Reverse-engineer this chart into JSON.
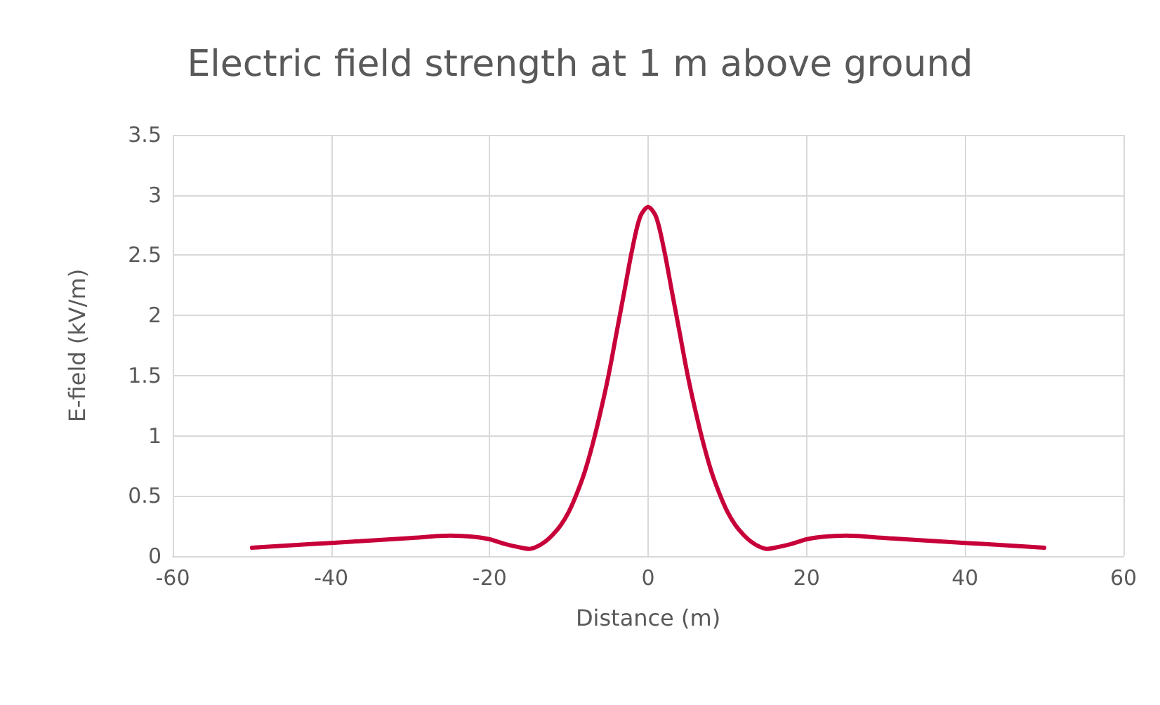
{
  "chart_data": {
    "type": "line",
    "title": "Electric field strength at 1 m above ground",
    "xlabel": "Distance (m)",
    "ylabel": "E-field (kV/m)",
    "series": [
      {
        "color": "#c8003a",
        "x": [
          -50,
          -45,
          -40,
          -35,
          -30,
          -25,
          -22,
          -20,
          -18,
          -16,
          -15,
          -14,
          -13,
          -12,
          -11,
          -10,
          -9,
          -8,
          -7,
          -6,
          -5,
          -4,
          -3,
          -2,
          -1,
          0,
          1,
          2,
          3,
          4,
          5,
          6,
          7,
          8,
          9,
          10,
          11,
          12,
          13,
          14,
          15,
          16,
          18,
          20,
          22,
          25,
          30,
          35,
          40,
          45,
          50
        ],
        "values": [
          0.07,
          0.09,
          0.11,
          0.13,
          0.15,
          0.17,
          0.16,
          0.14,
          0.1,
          0.07,
          0.06,
          0.08,
          0.12,
          0.18,
          0.26,
          0.37,
          0.52,
          0.7,
          0.93,
          1.2,
          1.5,
          1.85,
          2.2,
          2.55,
          2.82,
          2.9,
          2.82,
          2.55,
          2.2,
          1.85,
          1.5,
          1.2,
          0.93,
          0.7,
          0.52,
          0.37,
          0.26,
          0.18,
          0.12,
          0.08,
          0.06,
          0.07,
          0.1,
          0.14,
          0.16,
          0.17,
          0.15,
          0.13,
          0.11,
          0.09,
          0.07
        ]
      }
    ],
    "xlim": [
      -60,
      60
    ],
    "xticks": [
      -60,
      -40,
      -20,
      0,
      20,
      40,
      60
    ],
    "ylim": [
      0,
      3.5
    ],
    "yticks": [
      0,
      0.5,
      1,
      1.5,
      2,
      2.5,
      3,
      3.5
    ],
    "grid": true,
    "marker": "none",
    "line_style": "solid"
  }
}
